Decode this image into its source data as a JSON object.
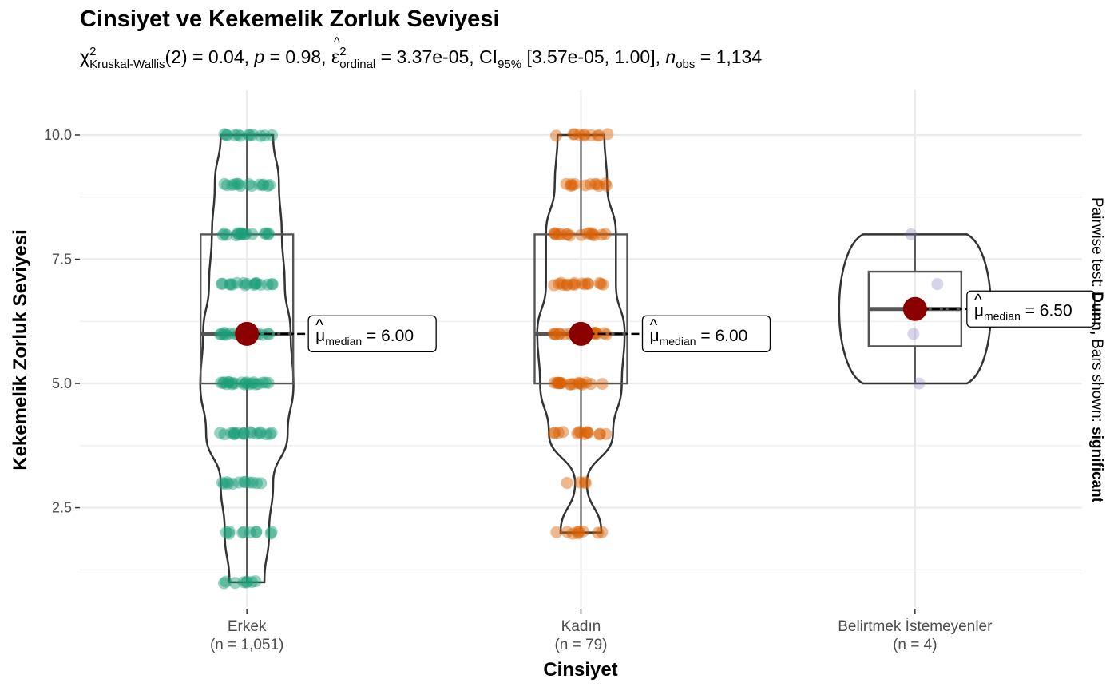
{
  "title": "Cinsiyet ve Kekemelik Zorluk Seviyesi",
  "subtitle": {
    "chi": "χ",
    "chi_sup": "2",
    "chi_sub": "Kruskal-Wallis",
    "df_part": "(2) = 0.04, ",
    "p_symbol": "p",
    "p_part": " = 0.98, ",
    "eps": "ε",
    "eps_hat": "^",
    "eps_sup": "2",
    "eps_sub": "ordinal",
    "eps_part": " = 3.37e-05, CI",
    "ci_sub": "95%",
    "ci_part": " [3.57e-05, 1.00], ",
    "n_symbol": "n",
    "n_sub": "obs",
    "n_part": " = 1,134"
  },
  "side_note": {
    "prefix": "Pairwise test: ",
    "test": "Dunn,",
    "middle": " Bars shown: ",
    "shown": "significant"
  },
  "chart_data": {
    "type": "violin-box-jitter",
    "title": "Cinsiyet ve Kekemelik Zorluk Seviyesi",
    "xlabel": "Cinsiyet",
    "ylabel": "Kekemelik Zorluk Seviyesi",
    "ylim": [
      0.5,
      10.9
    ],
    "yticks": [
      2.5,
      5.0,
      7.5,
      10.0
    ],
    "ytick_labels": [
      "2.5",
      "5.0",
      "7.5",
      "10.0"
    ],
    "grid": true,
    "groups": [
      {
        "name": "Erkek",
        "n_label": "(n = 1,051)",
        "color": "#1B9E77",
        "box": {
          "min": 1,
          "q1": 5,
          "median": 6,
          "q3": 8,
          "max": 10
        },
        "median_label": "6.00",
        "levels": [
          1,
          2,
          3,
          4,
          5,
          6,
          7,
          8,
          9,
          10
        ],
        "level_weights": [
          0.3,
          0.38,
          0.45,
          0.7,
          0.8,
          0.75,
          0.65,
          0.6,
          0.55,
          0.45
        ]
      },
      {
        "name": "Kadın",
        "n_label": "(n = 79)",
        "color": "#D95F02",
        "box": {
          "min": 2,
          "q1": 5,
          "median": 6,
          "q3": 8,
          "max": 10
        },
        "median_label": "6.00",
        "levels": [
          2,
          3,
          4,
          5,
          6,
          7,
          8,
          9,
          10
        ],
        "level_weights": [
          0.35,
          0.1,
          0.55,
          0.7,
          0.75,
          0.6,
          0.6,
          0.45,
          0.4
        ]
      },
      {
        "name": "Belirtmek İstemeyenler",
        "n_label": "(n = 4)",
        "color": "#7570B3",
        "box": {
          "min": 5,
          "q1": 5.75,
          "median": 6.5,
          "q3": 7.25,
          "max": 8
        },
        "median_label": "6.50",
        "points": [
          5,
          6,
          7,
          8
        ]
      }
    ],
    "median_symbol": "μ",
    "median_sub": "median"
  },
  "colors": {
    "median_dot": "#8B0000",
    "grid": "#EBEBEB",
    "outline": "#333333"
  }
}
